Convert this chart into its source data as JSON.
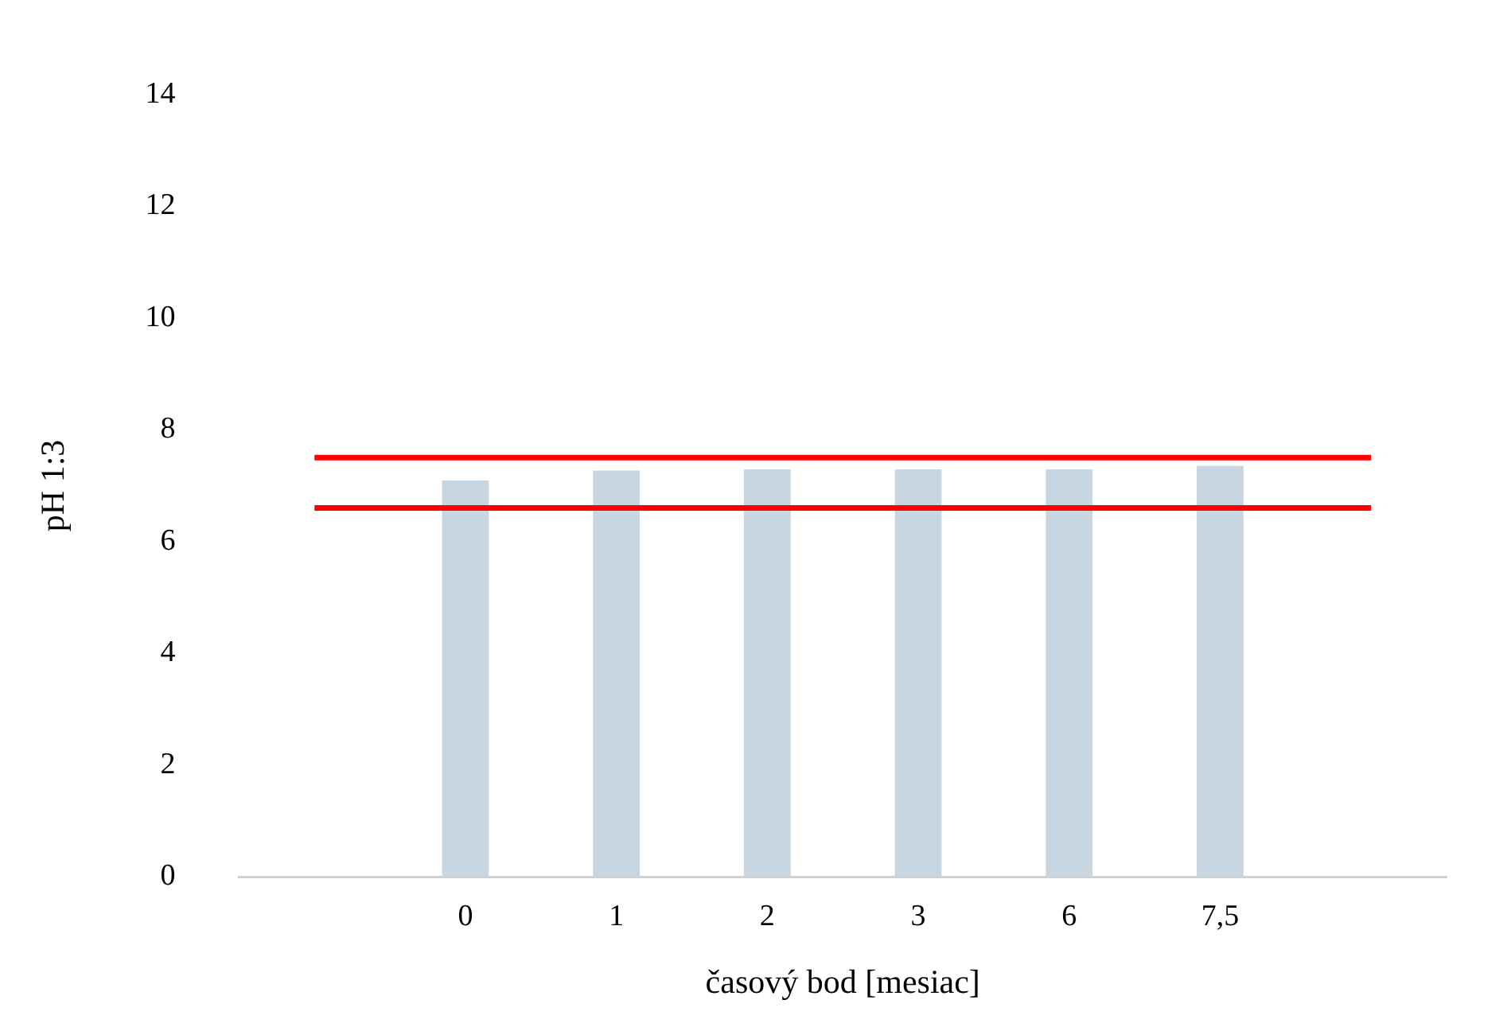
{
  "chart_data": {
    "type": "bar",
    "xlabel": "časový bod [mesiac]",
    "ylabel": "pH 1:3",
    "categories": [
      null,
      "0",
      "1",
      "2",
      "3",
      "6",
      "7,5",
      null
    ],
    "series": [
      {
        "color": "#c8d6e2",
        "values": [
          null,
          7.09,
          7.27,
          7.29,
          7.29,
          7.29,
          7.35,
          null
        ]
      },
      {
        "type": "line",
        "color": "#ff0000",
        "values": [
          7.5,
          7.5,
          7.5,
          7.5,
          7.5,
          7.5,
          7.5,
          7.5
        ]
      },
      {
        "type": "line",
        "color": "#ff0000",
        "values": [
          6.6,
          6.6,
          6.6,
          6.6,
          6.6,
          6.6,
          6.6,
          6.6
        ]
      }
    ],
    "ylim": [
      0,
      14
    ],
    "yticks": [
      0,
      2,
      4,
      6,
      8,
      10,
      12,
      14
    ],
    "grid": false,
    "legend": false
  }
}
